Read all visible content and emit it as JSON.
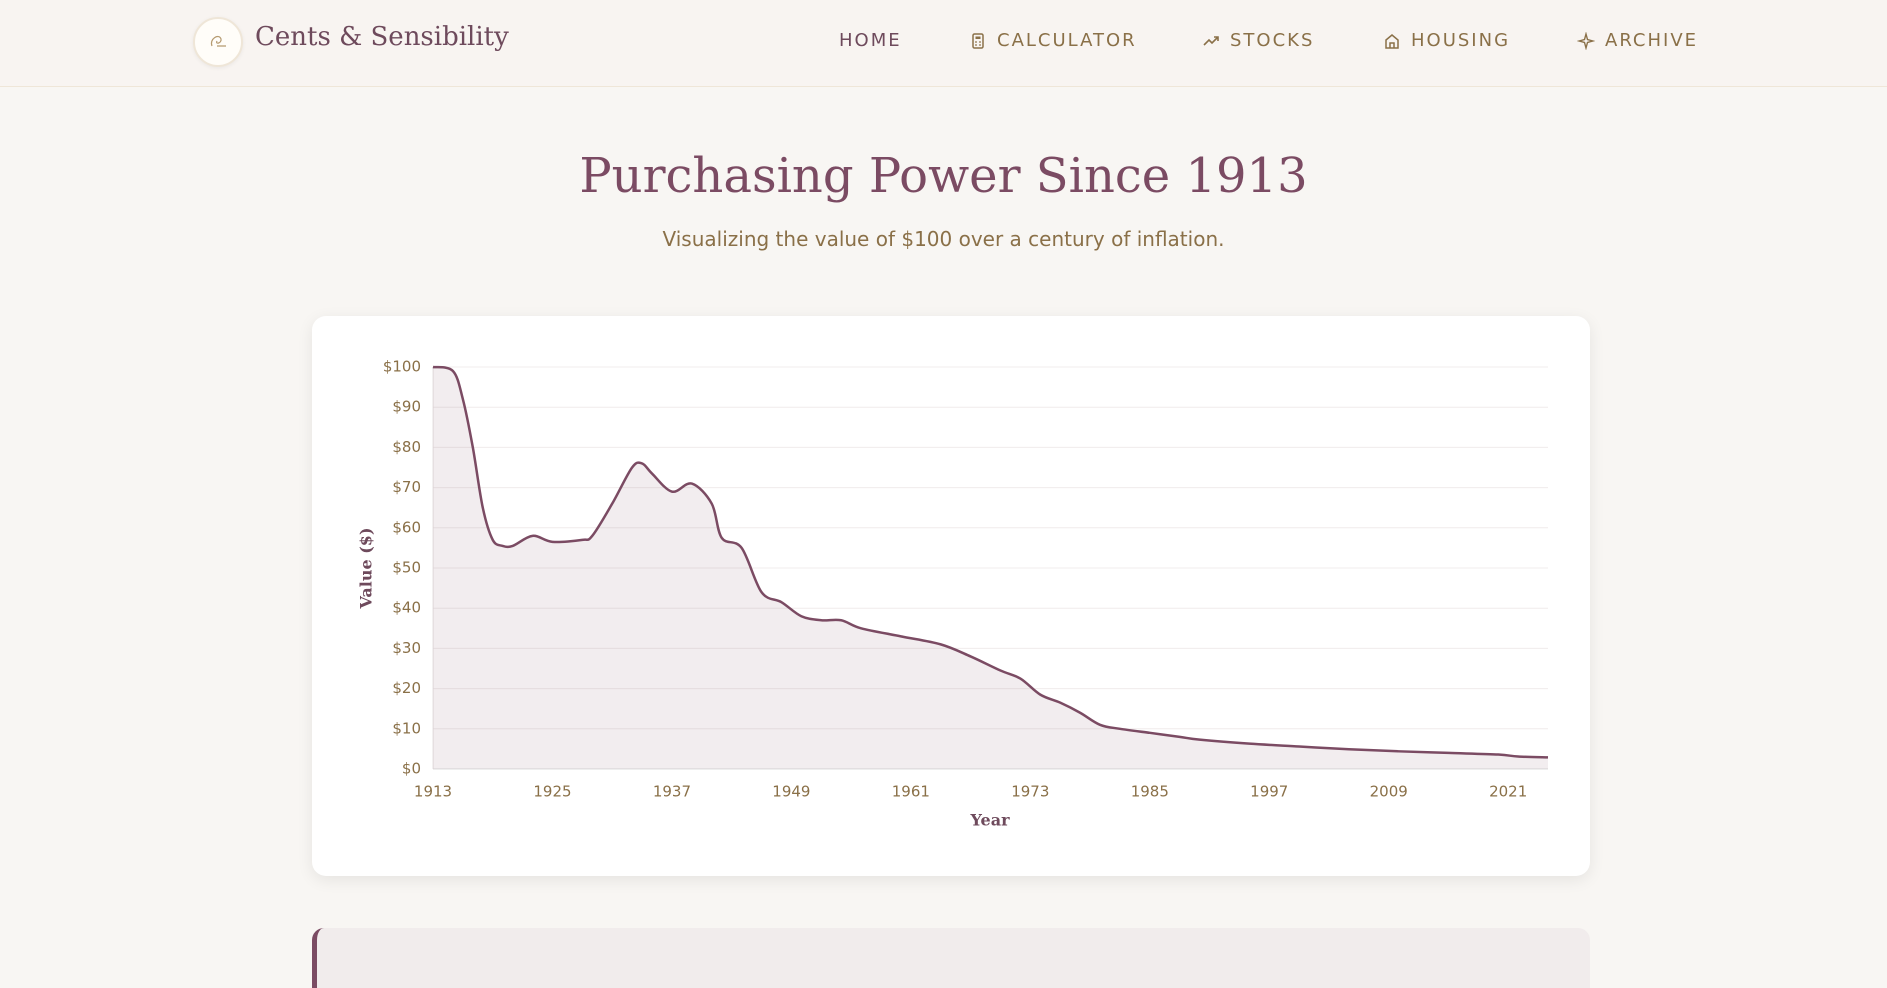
{
  "nav": {
    "brand": "Cents & Sensibility",
    "links": [
      "HOME",
      "CALCULATOR",
      "STOCKS",
      "HOUSING",
      "ARCHIVE"
    ]
  },
  "header": {
    "title": "Purchasing Power Since 1913",
    "subtitle": "Visualizing the value of $100 over a century of inflation."
  },
  "chart_data": {
    "type": "area",
    "x_label": "Year",
    "y_label": "Value ($)",
    "x": [
      1913,
      1915,
      1916,
      1917,
      1918,
      1919,
      1920,
      1921,
      1923,
      1925,
      1928,
      1929,
      1931,
      1933,
      1934,
      1935,
      1937,
      1939,
      1941,
      1942,
      1944,
      1946,
      1948,
      1950,
      1952,
      1954,
      1956,
      1960,
      1964,
      1967,
      1970,
      1972,
      1974,
      1976,
      1978,
      1980,
      1982,
      1985,
      1988,
      1990,
      1995,
      2000,
      2005,
      2010,
      2015,
      2020,
      2022,
      2025
    ],
    "values": [
      100,
      99,
      92,
      80,
      65,
      57,
      55.5,
      55.5,
      58,
      56.5,
      57,
      58,
      66,
      75,
      76,
      73.5,
      69,
      71,
      66,
      57.5,
      55,
      44,
      41.5,
      38,
      37,
      37,
      35,
      33,
      31,
      28,
      24.5,
      22.5,
      18.5,
      16.5,
      14,
      11,
      10,
      9,
      8,
      7.3,
      6.3,
      5.6,
      4.9,
      4.4,
      4.0,
      3.6,
      3.1,
      2.9
    ],
    "color": "#7b4b63",
    "xlim": [
      1913,
      2025
    ],
    "ylim": [
      0,
      100
    ],
    "xticks": [
      1913,
      1925,
      1937,
      1949,
      1961,
      1973,
      1985,
      1997,
      2009,
      2021
    ],
    "yticks": [
      {
        "value": 0,
        "label": "$0"
      },
      {
        "value": 10,
        "label": "$10"
      },
      {
        "value": 20,
        "label": "$20"
      },
      {
        "value": 30,
        "label": "$30"
      },
      {
        "value": 40,
        "label": "$40"
      },
      {
        "value": 50,
        "label": "$50"
      },
      {
        "value": 60,
        "label": "$60"
      },
      {
        "value": 70,
        "label": "$70"
      },
      {
        "value": 80,
        "label": "$80"
      },
      {
        "value": 90,
        "label": "$90"
      },
      {
        "value": 100,
        "label": "$100"
      }
    ],
    "grid": true
  }
}
